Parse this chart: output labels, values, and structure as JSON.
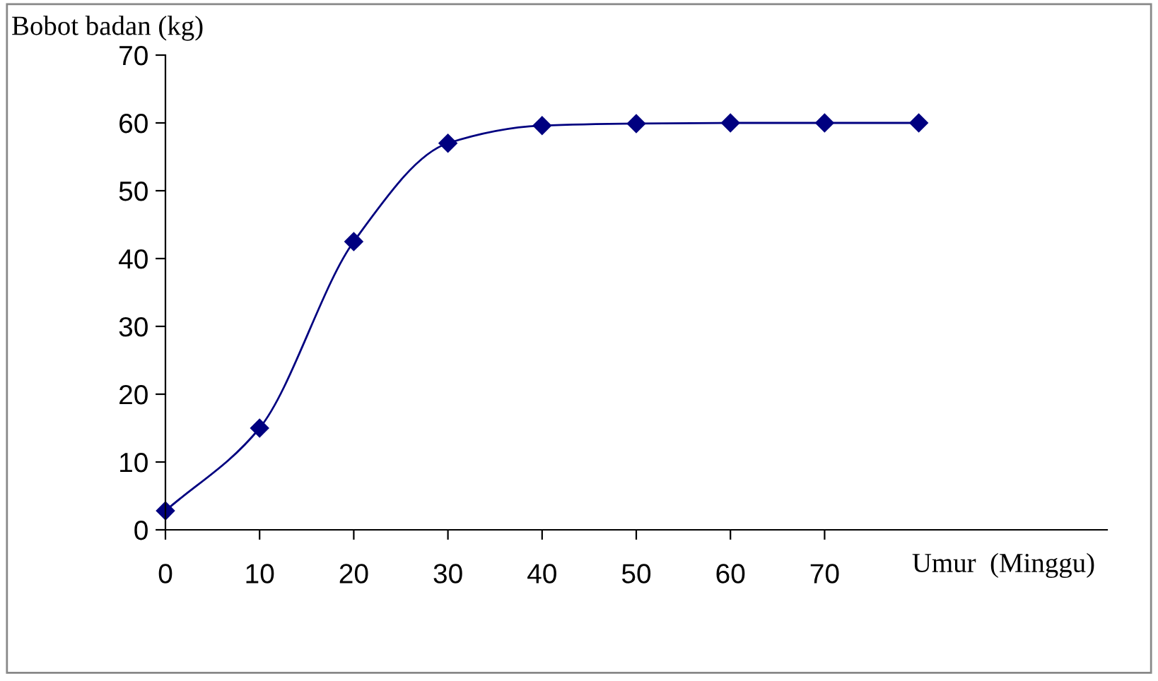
{
  "chart_data": {
    "type": "line",
    "xlabel": "Umur  (Minggu)",
    "ylabel": "Bobot badan (kg)",
    "x": [
      0,
      10,
      20,
      30,
      40,
      50,
      60,
      70,
      80
    ],
    "series": [
      {
        "color": "#000080",
        "values": [
          2.8,
          15.0,
          42.5,
          57.0,
          59.6,
          59.9,
          60.0,
          60.0,
          60.0
        ]
      }
    ],
    "xlim": [
      0,
      100
    ],
    "xticks": [
      0,
      10,
      20,
      30,
      40,
      50,
      60,
      70
    ],
    "ylim": [
      0,
      70
    ],
    "yticks": [
      0,
      10,
      20,
      30,
      40,
      50,
      60,
      70
    ],
    "marker": "diamond",
    "line_style": "solid",
    "grid": false,
    "legend": false
  }
}
